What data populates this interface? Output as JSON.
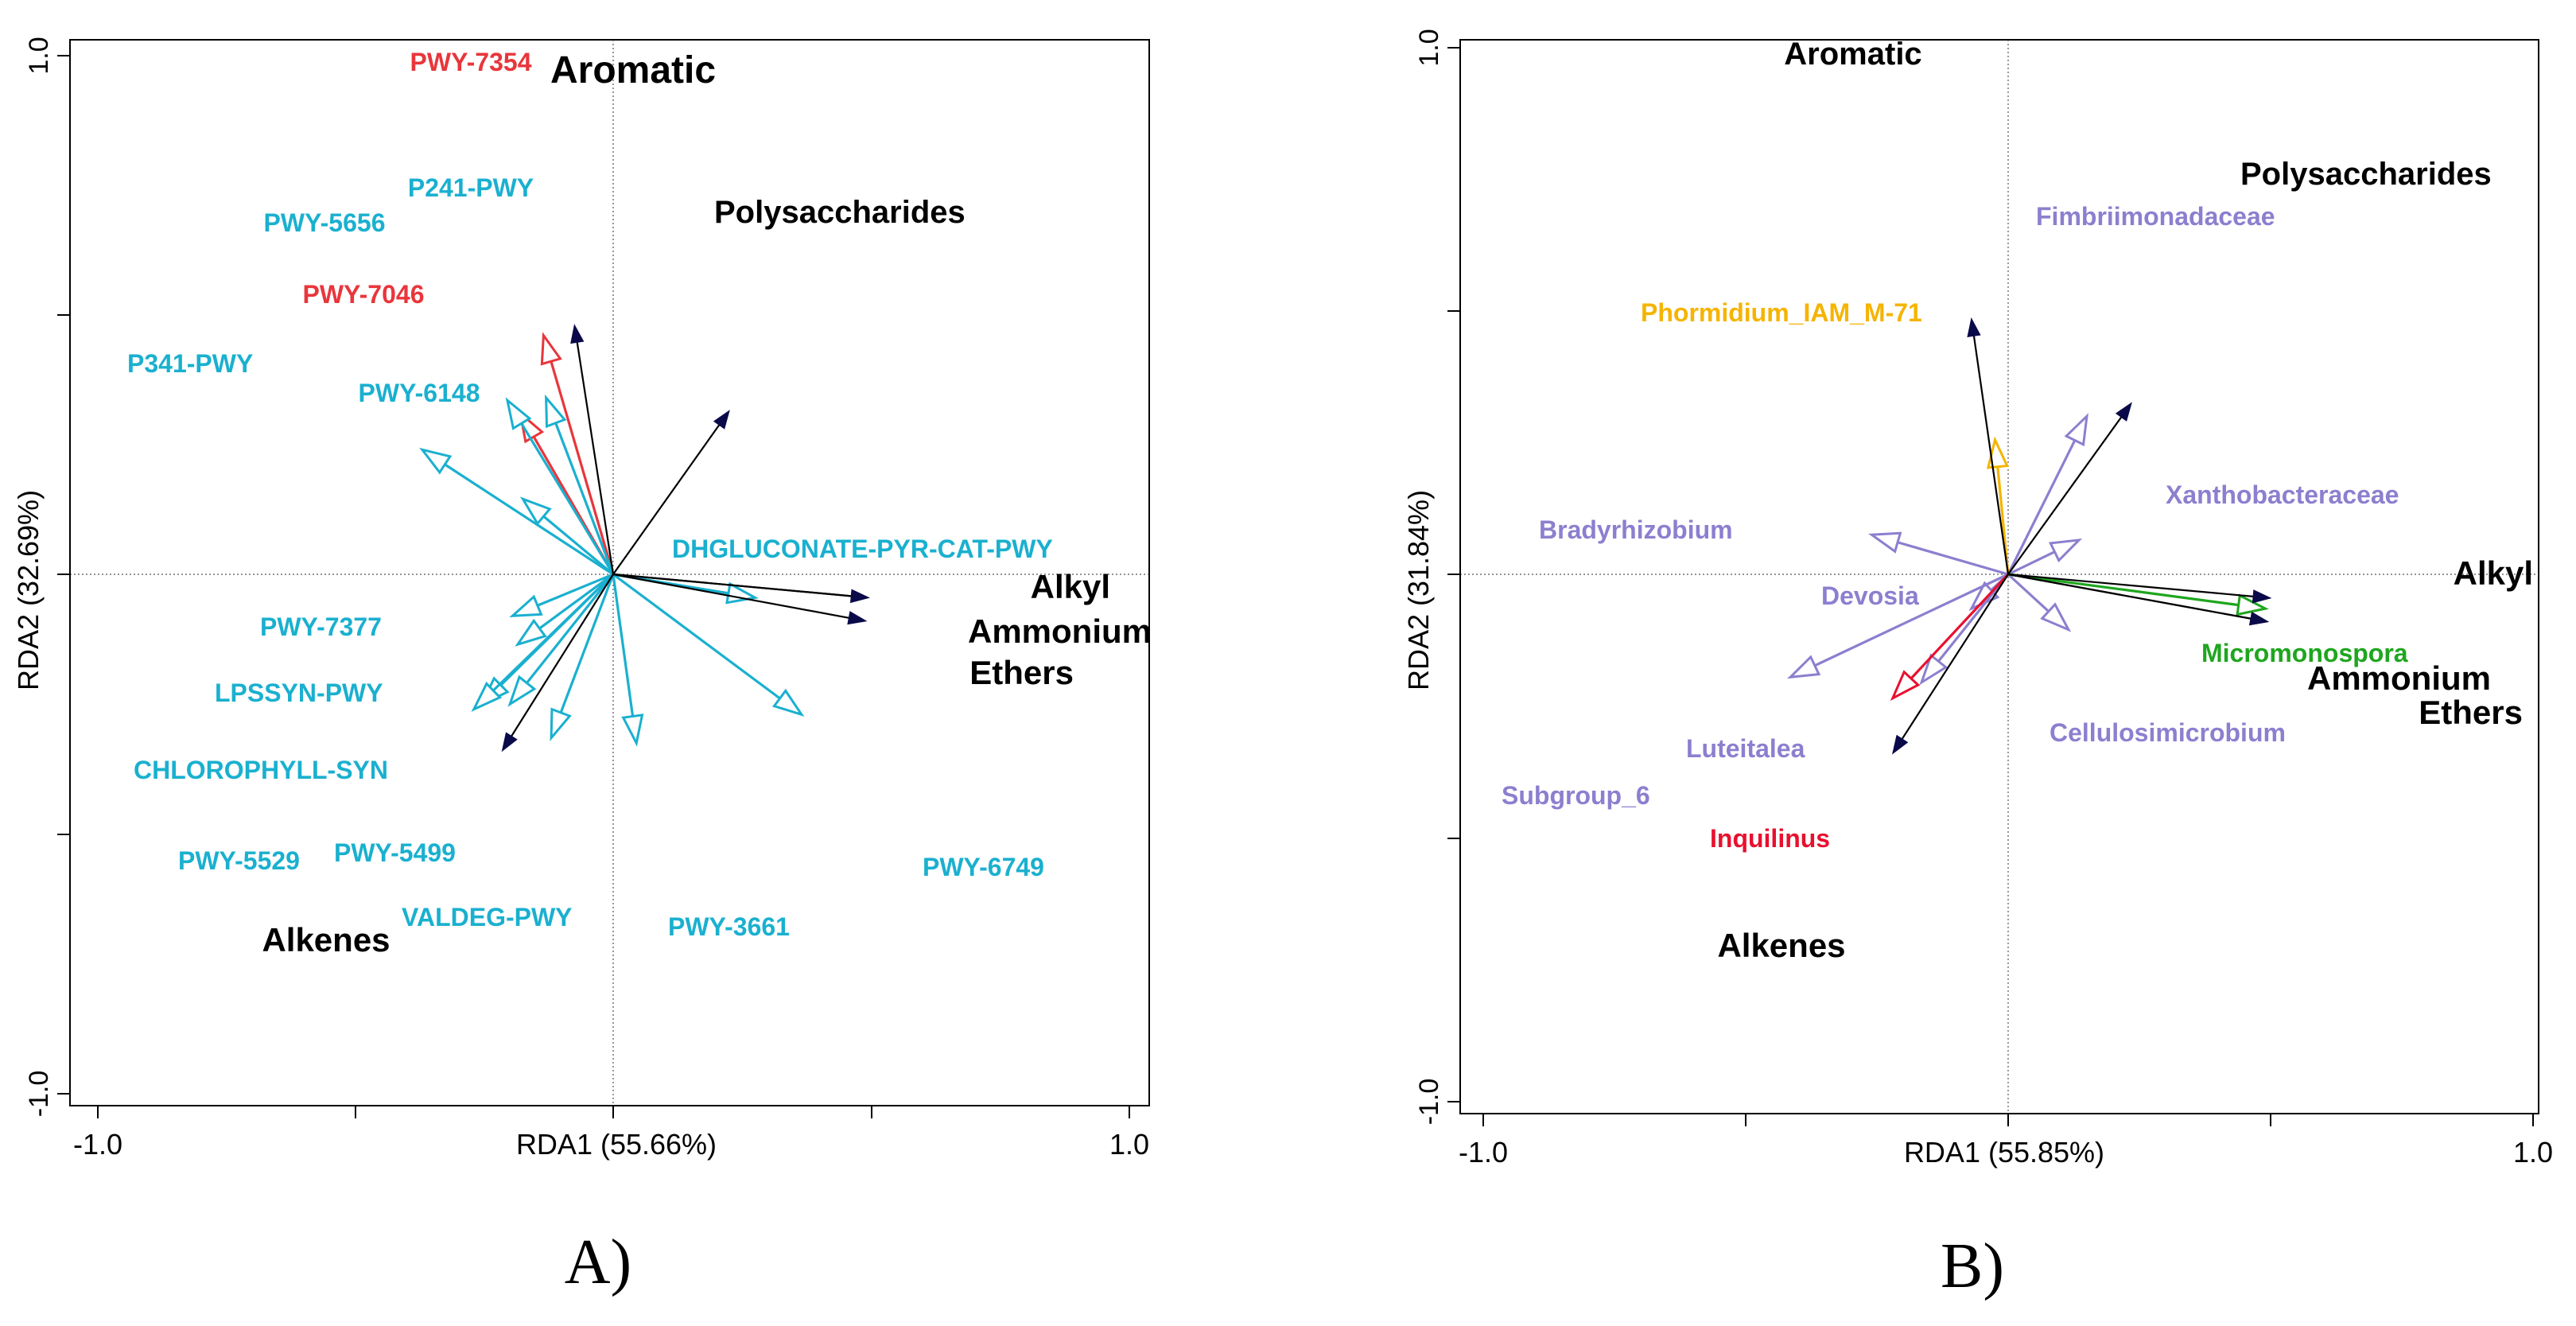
{
  "chart_data": [
    {
      "type": "scatter",
      "panel_label": "A)",
      "xlabel": "RDA1 (55.66%)",
      "ylabel": "RDA2 (32.69%)",
      "xlim": [
        -1.0,
        1.0
      ],
      "ylim": [
        -1.0,
        1.0
      ],
      "x_tick_labels": [
        "-1.0",
        "1.0"
      ],
      "y_tick_labels": [
        "-1.0",
        "1.0"
      ],
      "grid": false,
      "colors": {
        "env": "#0a0a4a",
        "red": "#e8363b",
        "cyan": "#1ab0cf"
      },
      "env_vectors": [
        {
          "label": "Aromatic",
          "x": -0.15,
          "y": 0.96
        },
        {
          "label": "Polysaccharides",
          "x": 0.45,
          "y": 0.63
        },
        {
          "label": "Alkyl",
          "x": 0.99,
          "y": -0.09
        },
        {
          "label": "Ammonium",
          "x": 0.99,
          "y": -0.09
        },
        {
          "label": "Ethers",
          "x": 0.98,
          "y": -0.18
        },
        {
          "label": "Alkenes",
          "x": -0.43,
          "y": -0.68
        }
      ],
      "response_vectors": [
        {
          "label": "PWY-7354",
          "x": -0.27,
          "y": 0.92,
          "color": "red"
        },
        {
          "label": "PWY-7046",
          "x": -0.36,
          "y": 0.62,
          "color": "red"
        },
        {
          "label": "P241-PWY",
          "x": -0.26,
          "y": 0.68,
          "color": "cyan"
        },
        {
          "label": "PWY-5656",
          "x": -0.41,
          "y": 0.67,
          "color": "cyan"
        },
        {
          "label": "P341-PWY",
          "x": -0.74,
          "y": 0.48,
          "color": "cyan"
        },
        {
          "label": "PWY-6148",
          "x": -0.35,
          "y": 0.29,
          "color": "cyan"
        },
        {
          "label": "DHGLUCONATE-PYR-CAT-PWY",
          "x": 0.55,
          "y": -0.09,
          "color": "cyan"
        },
        {
          "label": "PWY-7377",
          "x": -0.39,
          "y": -0.16,
          "color": "cyan"
        },
        {
          "label": "LPSSYN-PWY",
          "x": -0.37,
          "y": -0.27,
          "color": "cyan"
        },
        {
          "label": "CHLOROPHYLL-SYN",
          "x": -0.51,
          "y": -0.5,
          "color": "cyan"
        },
        {
          "label": "PWY-5529",
          "x": -0.54,
          "y": -0.52,
          "color": "cyan"
        },
        {
          "label": "PWY-5499",
          "x": -0.4,
          "y": -0.5,
          "color": "cyan"
        },
        {
          "label": "VALDEG-PWY",
          "x": -0.24,
          "y": -0.63,
          "color": "cyan"
        },
        {
          "label": "PWY-3661",
          "x": 0.09,
          "y": -0.65,
          "color": "cyan"
        },
        {
          "label": "PWY-6749",
          "x": 0.73,
          "y": -0.54,
          "color": "cyan"
        }
      ]
    },
    {
      "type": "scatter",
      "panel_label": "B)",
      "xlabel": "RDA1 (55.85%)",
      "ylabel": "RDA2 (31.84%)",
      "xlim": [
        -1.0,
        1.0
      ],
      "ylim": [
        -1.0,
        1.0
      ],
      "x_tick_labels": [
        "-1.0",
        "1.0"
      ],
      "y_tick_labels": [
        "-1.0",
        "1.0"
      ],
      "grid": false,
      "colors": {
        "env": "#0a0a4a",
        "purple": "#8c7fcf",
        "orange": "#f5b400",
        "red": "#e8102e",
        "green": "#1ea61e"
      },
      "env_vectors": [
        {
          "label": "Aromatic",
          "x": -0.14,
          "y": 0.97
        },
        {
          "label": "Polysaccharides",
          "x": 0.47,
          "y": 0.65
        },
        {
          "label": "Alkyl",
          "x": 1.0,
          "y": -0.09
        },
        {
          "label": "Ammonium",
          "x": 0.99,
          "y": -0.18
        },
        {
          "label": "Ethers",
          "x": 0.99,
          "y": -0.18
        },
        {
          "label": "Alkenes",
          "x": -0.44,
          "y": -0.68
        }
      ],
      "response_vectors": [
        {
          "label": "Fimbriimonadaceae",
          "x": 0.3,
          "y": 0.6,
          "color": "purple"
        },
        {
          "label": "Phormidium_IAM_M-71",
          "x": -0.05,
          "y": 0.51,
          "color": "orange"
        },
        {
          "label": "Bradyrhizobium",
          "x": -0.52,
          "y": 0.15,
          "color": "purple"
        },
        {
          "label": "Xanthobacteraceae",
          "x": 0.27,
          "y": 0.13,
          "color": "purple"
        },
        {
          "label": "Devosia",
          "x": -0.14,
          "y": -0.13,
          "color": "purple"
        },
        {
          "label": "Cellulosimicrobium",
          "x": 0.23,
          "y": -0.21,
          "color": "purple"
        },
        {
          "label": "Luteitalea",
          "x": -0.33,
          "y": -0.41,
          "color": "purple"
        },
        {
          "label": "Subgroup_6",
          "x": -0.83,
          "y": -0.39,
          "color": "purple"
        },
        {
          "label": "Inquilinus",
          "x": -0.44,
          "y": -0.47,
          "color": "red"
        },
        {
          "label": "Micromonospora",
          "x": 0.98,
          "y": -0.13,
          "color": "green"
        }
      ]
    }
  ]
}
